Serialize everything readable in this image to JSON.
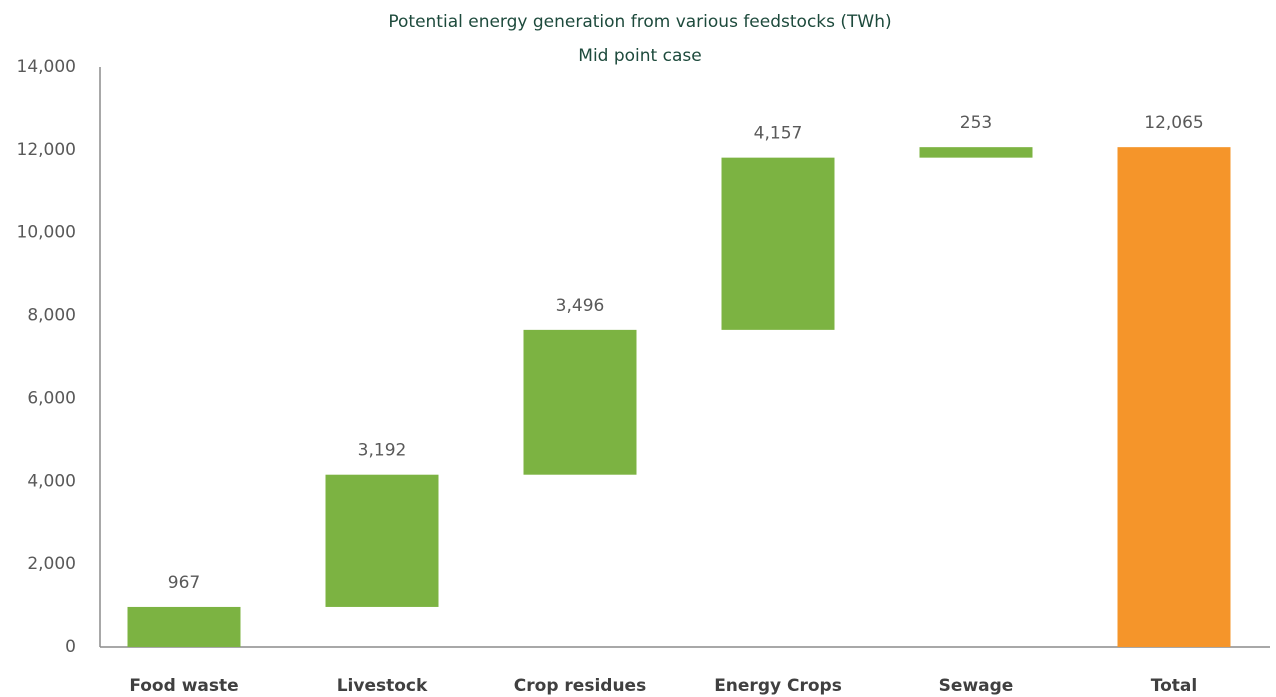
{
  "chart_data": {
    "type": "waterfall",
    "title": "Potential energy generation from various feedstocks (TWh)",
    "subtitle": "Mid point case",
    "categories": [
      "Food waste",
      "Livestock",
      "Crop residues",
      "Energy Crops",
      "Sewage",
      "Total"
    ],
    "values": [
      967,
      3192,
      3496,
      4157,
      253,
      12065
    ],
    "value_labels": [
      "967",
      "3,192",
      "3,496",
      "4,157",
      "253",
      "12,065"
    ],
    "measures": [
      "relative",
      "relative",
      "relative",
      "relative",
      "relative",
      "total"
    ],
    "increase_color": "#7cb342",
    "total_color": "#f5952a",
    "ylim": [
      0,
      14000
    ],
    "yticks": [
      0,
      {
        "value": 2000,
        "label": "2,000"
      },
      {
        "value": 4000,
        "label": "4,000"
      },
      {
        "value": 6000,
        "label": "6,000"
      },
      {
        "value": 8000,
        "label": "8,000"
      },
      {
        "value": 10000,
        "label": "10,000"
      },
      {
        "value": 12000,
        "label": "12,000"
      },
      {
        "value": 14000,
        "label": "14,000"
      }
    ],
    "grid": false
  }
}
